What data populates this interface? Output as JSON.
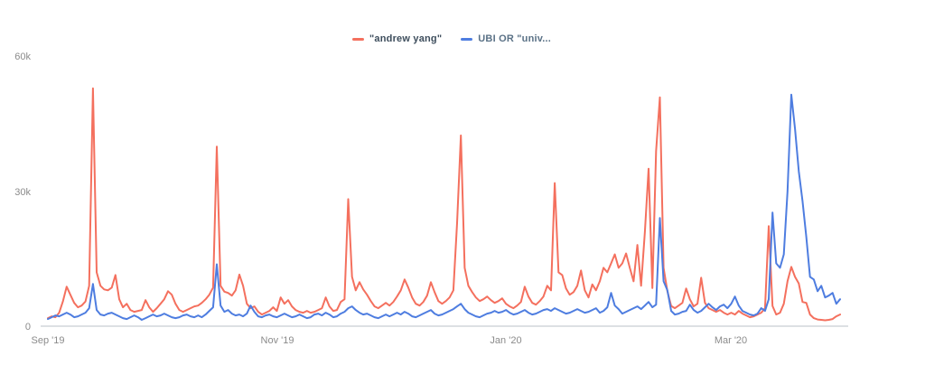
{
  "chart_data": {
    "type": "line",
    "title": "",
    "grid": false,
    "legend_position": "top-center",
    "value_unit": "thousands of mentions",
    "x_axis": {
      "start_date": "2019-09-01",
      "end_date": "2020-03-30",
      "step_days": 1,
      "tick_labels": [
        "Sep '19",
        "Nov '19",
        "Jan '20",
        "Mar '20"
      ],
      "tick_day_indices": [
        0,
        61,
        122,
        182
      ]
    },
    "y_axis": {
      "tick_labels": [
        "60k",
        "30k",
        "0"
      ],
      "tick_values": [
        60000,
        30000,
        0
      ],
      "ylim": [
        0,
        60000
      ]
    },
    "series": [
      {
        "id": "andrew-yang",
        "name": "\"andrew yang\"",
        "color": "#F4705E",
        "values_unit": "k",
        "values": [
          1.8,
          2.2,
          2.0,
          3.0,
          5.5,
          8.8,
          7.0,
          5.2,
          4.2,
          4.6,
          5.5,
          9.0,
          53.0,
          12.0,
          9.0,
          8.2,
          8.0,
          8.6,
          11.4,
          6.0,
          4.2,
          5.0,
          3.6,
          3.2,
          3.4,
          3.6,
          5.8,
          4.2,
          3.2,
          4.0,
          5.0,
          6.0,
          7.8,
          7.0,
          5.0,
          3.6,
          3.2,
          3.6,
          4.0,
          4.4,
          4.6,
          5.2,
          6.0,
          7.0,
          8.6,
          40.0,
          9.0,
          7.7,
          7.4,
          6.8,
          8.0,
          11.5,
          9.0,
          5.0,
          4.0,
          4.4,
          3.2,
          2.6,
          3.0,
          3.4,
          4.2,
          3.4,
          6.4,
          5.0,
          5.8,
          4.4,
          3.6,
          3.2,
          3.0,
          3.4,
          3.0,
          3.2,
          3.6,
          4.0,
          6.4,
          4.4,
          3.4,
          3.6,
          5.4,
          6.0,
          28.3,
          11.0,
          8.0,
          9.8,
          8.2,
          7.0,
          5.6,
          4.4,
          4.0,
          4.6,
          5.2,
          4.6,
          5.4,
          6.6,
          8.0,
          10.4,
          8.6,
          6.4,
          5.0,
          4.6,
          5.4,
          6.8,
          9.8,
          7.6,
          5.6,
          5.0,
          5.6,
          6.4,
          8.0,
          23.0,
          42.5,
          13.0,
          9.0,
          7.6,
          6.4,
          5.6,
          6.0,
          6.6,
          5.8,
          5.2,
          5.6,
          6.2,
          5.0,
          4.4,
          4.0,
          4.6,
          5.4,
          8.8,
          6.6,
          5.2,
          4.8,
          5.6,
          6.6,
          9.0,
          8.0,
          31.9,
          12.0,
          11.4,
          8.4,
          7.0,
          7.6,
          9.0,
          12.4,
          8.0,
          6.4,
          9.3,
          8.0,
          10.0,
          13.0,
          12.0,
          14.0,
          16.0,
          13.0,
          14.0,
          16.2,
          13.0,
          10.0,
          18.1,
          9.0,
          21.0,
          35.1,
          8.5,
          39.0,
          51.0,
          13.0,
          7.8,
          4.5,
          4.0,
          4.6,
          5.2,
          8.4,
          6.0,
          4.4,
          5.0,
          10.8,
          5.2,
          4.0,
          3.6,
          3.2,
          3.6,
          3.0,
          2.6,
          3.0,
          2.6,
          3.4,
          2.8,
          2.4,
          2.0,
          2.2,
          2.6,
          3.0,
          4.0,
          22.3,
          4.5,
          2.6,
          3.0,
          5.0,
          10.0,
          13.2,
          11.0,
          9.5,
          5.4,
          5.2,
          2.6,
          1.8,
          1.5,
          1.4,
          1.3,
          1.4,
          1.6,
          2.2,
          2.6
        ]
      },
      {
        "id": "ubi",
        "name": "UBI OR \"univ...",
        "color": "#4E7DE0",
        "values_unit": "k",
        "values": [
          1.6,
          2.0,
          2.4,
          2.2,
          2.6,
          3.0,
          2.6,
          2.0,
          2.2,
          2.6,
          3.0,
          4.0,
          9.4,
          3.6,
          2.6,
          2.4,
          2.8,
          3.0,
          2.6,
          2.2,
          1.8,
          1.6,
          2.0,
          2.4,
          2.0,
          1.4,
          1.8,
          2.2,
          2.6,
          2.2,
          2.4,
          2.8,
          2.4,
          2.0,
          1.8,
          2.0,
          2.4,
          2.6,
          2.2,
          2.0,
          2.4,
          2.0,
          2.6,
          3.4,
          4.2,
          13.8,
          4.6,
          3.2,
          3.6,
          2.8,
          2.4,
          2.6,
          2.2,
          2.8,
          4.6,
          3.2,
          2.2,
          2.0,
          2.4,
          2.6,
          2.2,
          2.0,
          2.4,
          2.8,
          2.4,
          2.0,
          2.2,
          2.6,
          2.2,
          1.8,
          2.0,
          2.6,
          2.8,
          2.4,
          3.0,
          2.6,
          2.0,
          2.2,
          2.8,
          3.2,
          4.0,
          4.4,
          3.6,
          3.0,
          2.6,
          2.8,
          2.4,
          2.0,
          1.8,
          2.2,
          2.6,
          2.2,
          2.6,
          3.0,
          2.6,
          3.2,
          2.8,
          2.2,
          2.0,
          2.4,
          2.8,
          3.2,
          3.6,
          2.8,
          2.4,
          2.6,
          3.0,
          3.4,
          3.8,
          4.4,
          5.0,
          3.8,
          3.0,
          2.6,
          2.2,
          2.0,
          2.4,
          2.8,
          3.0,
          3.4,
          3.0,
          3.2,
          3.6,
          3.0,
          2.6,
          2.8,
          3.2,
          3.6,
          3.0,
          2.6,
          2.8,
          3.2,
          3.6,
          3.8,
          3.4,
          4.0,
          3.6,
          3.2,
          2.8,
          3.0,
          3.4,
          3.8,
          3.4,
          3.0,
          3.2,
          3.6,
          4.0,
          3.0,
          3.4,
          4.2,
          7.4,
          4.6,
          3.8,
          2.8,
          3.2,
          3.6,
          4.0,
          4.4,
          3.8,
          4.6,
          5.4,
          4.2,
          4.8,
          24.1,
          10.0,
          8.0,
          3.4,
          2.6,
          2.8,
          3.2,
          3.4,
          4.8,
          3.6,
          3.0,
          3.4,
          4.2,
          5.0,
          4.2,
          3.6,
          4.4,
          4.8,
          4.0,
          5.0,
          6.6,
          4.6,
          3.4,
          3.0,
          2.6,
          2.4,
          2.8,
          4.0,
          3.4,
          6.0,
          25.3,
          14.0,
          13.0,
          16.0,
          30.0,
          51.6,
          44.0,
          34.5,
          27.9,
          19.9,
          11.0,
          10.4,
          7.8,
          9.0,
          6.4,
          6.8,
          7.4,
          5.0,
          6.0
        ]
      }
    ]
  },
  "axis_colors": {
    "tick_label": "#8B8B8B",
    "baseline": "#D2D5DA"
  }
}
